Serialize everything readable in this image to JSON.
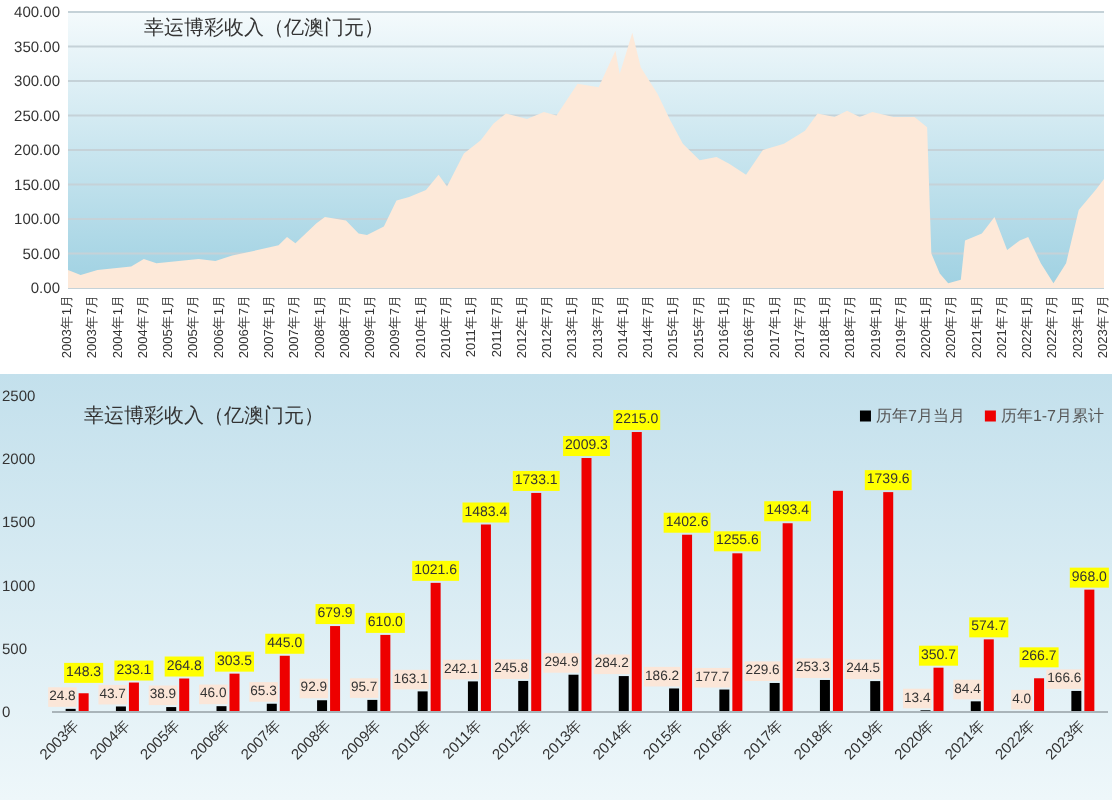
{
  "chart_data": [
    {
      "type": "area",
      "title": "幸运博彩收入（亿澳门元）",
      "x": [
        "2003-01",
        "2003-04",
        "2003-08",
        "2004-04",
        "2004-07",
        "2004-10",
        "2005-08",
        "2005-12",
        "2006-04",
        "2006-10",
        "2007-03",
        "2007-05",
        "2007-07",
        "2007-12",
        "2008-02",
        "2008-07",
        "2008-10",
        "2008-12",
        "2009-04",
        "2009-07",
        "2009-10",
        "2010-02",
        "2010-05",
        "2010-07",
        "2010-11",
        "2011-03",
        "2011-06",
        "2011-09",
        "2012-02",
        "2012-06",
        "2012-09",
        "2013-02",
        "2013-07",
        "2013-11",
        "2013-12",
        "2014-03",
        "2014-05",
        "2014-09",
        "2014-12",
        "2015-03",
        "2015-07",
        "2015-11",
        "2016-02",
        "2016-06",
        "2016-10",
        "2017-03",
        "2017-08",
        "2017-11",
        "2018-03",
        "2018-06",
        "2018-09",
        "2018-12",
        "2019-05",
        "2019-10",
        "2020-01",
        "2020-02",
        "2020-04",
        "2020-06",
        "2020-09",
        "2020-10",
        "2021-02",
        "2021-05",
        "2021-08",
        "2021-11",
        "2022-01",
        "2022-04",
        "2022-07",
        "2022-10",
        "2023-01",
        "2023-05",
        "2023-07"
      ],
      "values": [
        26,
        19,
        26,
        31,
        42,
        36,
        42,
        39,
        47,
        55,
        62,
        74,
        65,
        94,
        103,
        98,
        79,
        77,
        89,
        127,
        132,
        142,
        164,
        147,
        195,
        214,
        238,
        253,
        245,
        255,
        250,
        296,
        291,
        344,
        310,
        370,
        320,
        281,
        243,
        209,
        185,
        190,
        180,
        164,
        200,
        209,
        228,
        253,
        248,
        257,
        248,
        255,
        248,
        248,
        233,
        50,
        21,
        7,
        12,
        69,
        79,
        103,
        55,
        69,
        74,
        36,
        7,
        36,
        113,
        142,
        158
      ],
      "color": "#fde9d9",
      "xlim": [
        "2003-01",
        "2023-07"
      ],
      "xticks": [
        {
          "value": "2003-01",
          "label": "2003年1月"
        },
        {
          "value": "2003-07",
          "label": "2003年7月"
        },
        {
          "value": "2004-01",
          "label": "2004年1月"
        },
        {
          "value": "2004-07",
          "label": "2004年7月"
        },
        {
          "value": "2005-01",
          "label": "2005年1月"
        },
        {
          "value": "2005-07",
          "label": "2005年7月"
        },
        {
          "value": "2006-01",
          "label": "2006年1月"
        },
        {
          "value": "2006-07",
          "label": "2006年7月"
        },
        {
          "value": "2007-01",
          "label": "2007年1月"
        },
        {
          "value": "2007-07",
          "label": "2007年7月"
        },
        {
          "value": "2008-01",
          "label": "2008年1月"
        },
        {
          "value": "2008-07",
          "label": "2008年7月"
        },
        {
          "value": "2009-01",
          "label": "2009年1月"
        },
        {
          "value": "2009-07",
          "label": "2009年7月"
        },
        {
          "value": "2010-01",
          "label": "2010年1月"
        },
        {
          "value": "2010-07",
          "label": "2010年7月"
        },
        {
          "value": "2011-01",
          "label": "2011年1月"
        },
        {
          "value": "2011-07",
          "label": "2011年7月"
        },
        {
          "value": "2012-01",
          "label": "2012年1月"
        },
        {
          "value": "2012-07",
          "label": "2012年7月"
        },
        {
          "value": "2013-01",
          "label": "2013年1月"
        },
        {
          "value": "2013-07",
          "label": "2013年7月"
        },
        {
          "value": "2014-01",
          "label": "2014年1月"
        },
        {
          "value": "2014-07",
          "label": "2014年7月"
        },
        {
          "value": "2015-01",
          "label": "2015年1月"
        },
        {
          "value": "2015-07",
          "label": "2015年7月"
        },
        {
          "value": "2016-01",
          "label": "2016年1月"
        },
        {
          "value": "2016-07",
          "label": "2016年7月"
        },
        {
          "value": "2017-01",
          "label": "2017年1月"
        },
        {
          "value": "2017-07",
          "label": "2017年7月"
        },
        {
          "value": "2018-01",
          "label": "2018年1月"
        },
        {
          "value": "2018-07",
          "label": "2018年7月"
        },
        {
          "value": "2019-01",
          "label": "2019年1月"
        },
        {
          "value": "2019-07",
          "label": "2019年7月"
        },
        {
          "value": "2020-01",
          "label": "2020年1月"
        },
        {
          "value": "2020-07",
          "label": "2020年7月"
        },
        {
          "value": "2021-01",
          "label": "2021年1月"
        },
        {
          "value": "2021-07",
          "label": "2021年7月"
        },
        {
          "value": "2022-01",
          "label": "2022年1月"
        },
        {
          "value": "2022-07",
          "label": "2022年7月"
        },
        {
          "value": "2023-01",
          "label": "2023年1月"
        },
        {
          "value": "2023-07",
          "label": "2023年7月"
        }
      ],
      "ylim": [
        0,
        400
      ],
      "yticks": [
        {
          "value": 0,
          "label": "0.00"
        },
        {
          "value": 50,
          "label": "50.00"
        },
        {
          "value": 100,
          "label": "100.00"
        },
        {
          "value": 150,
          "label": "150.00"
        },
        {
          "value": 200,
          "label": "200.00"
        },
        {
          "value": 250,
          "label": "250.00"
        },
        {
          "value": 300,
          "label": "300.00"
        },
        {
          "value": 350,
          "label": "350.00"
        },
        {
          "value": 400,
          "label": "400.00"
        }
      ],
      "grid": "y"
    },
    {
      "type": "bar",
      "title": "幸运博彩收入（亿澳门元）",
      "categories": [
        "2003年",
        "2004年",
        "2005年",
        "2006年",
        "2007年",
        "2008年",
        "2009年",
        "2010年",
        "2011年",
        "2012年",
        "2013年",
        "2014年",
        "2015年",
        "2016年",
        "2017年",
        "2018年",
        "2019年",
        "2020年",
        "2021年",
        "2022年",
        "2023年"
      ],
      "series": [
        {
          "name": "历年7月当月",
          "color": "#000000",
          "values": [
            24.8,
            43.7,
            38.9,
            46.0,
            65.3,
            92.9,
            95.7,
            163.1,
            242.1,
            245.8,
            294.9,
            284.2,
            186.2,
            177.7,
            229.6,
            253.3,
            244.5,
            13.4,
            84.4,
            4.0,
            166.6
          ],
          "value_labels": [
            "24.8",
            "43.7",
            "38.9",
            "46.0",
            "65.3",
            "92.9",
            "95.7",
            "163.1",
            "242.1",
            "245.8",
            "294.9",
            "284.2",
            "186.2",
            "177.7",
            "229.6",
            "253.3",
            "244.5",
            "13.4",
            "84.4",
            "4.0",
            "166.6"
          ]
        },
        {
          "name": "历年1-7月累计",
          "color": "#ee0000",
          "values": [
            148.3,
            233.1,
            264.8,
            303.5,
            445.0,
            679.9,
            610.0,
            1021.6,
            1483.4,
            1733.1,
            2009.3,
            2215.0,
            1402.6,
            1255.6,
            1493.4,
            1750,
            1739.6,
            350.7,
            574.7,
            266.7,
            968.0
          ],
          "value_labels": [
            "148.3",
            "233.1",
            "264.8",
            "303.5",
            "445.0",
            "679.9",
            "610.0",
            "1021.6",
            "1483.4",
            "1733.1",
            "2009.3",
            "2215.0",
            "1402.6",
            "1255.6",
            "1493.4",
            null,
            "1739.6",
            "350.7",
            "574.7",
            "266.7",
            "968.0"
          ]
        }
      ],
      "ylim": [
        0,
        2500
      ],
      "yticks": [
        0,
        500,
        1000,
        1500,
        2000,
        2500
      ],
      "legend": "top right"
    }
  ]
}
